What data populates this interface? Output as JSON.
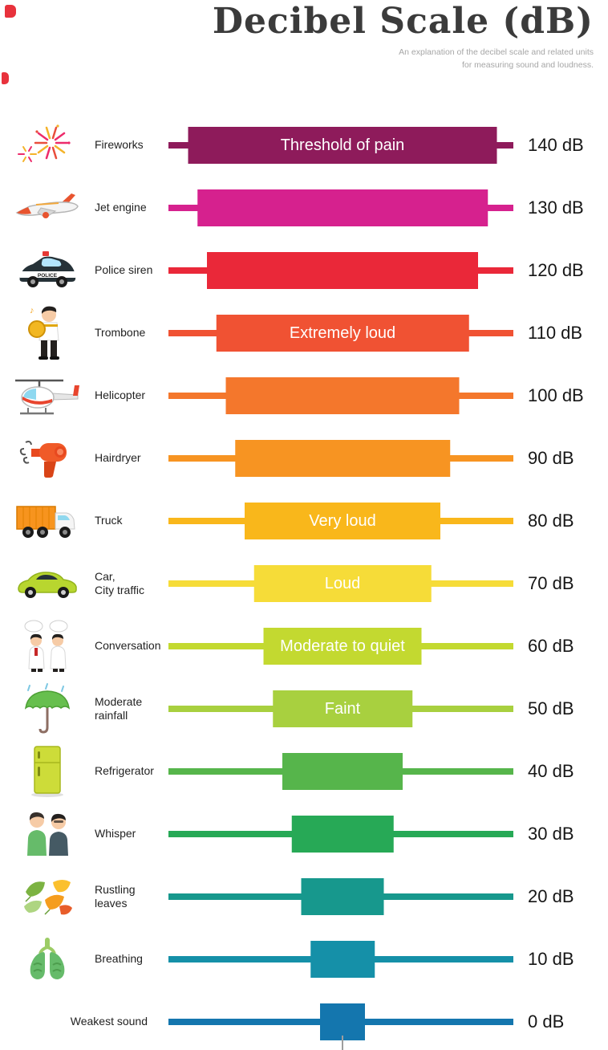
{
  "header": {
    "title": "Decibel Scale (dB)",
    "subtitle_line1": "An explanation of the decibel scale and related units",
    "subtitle_line2": "for measuring sound and loudness."
  },
  "decorations": {
    "corner_mark_color": "#e8323c",
    "bottom_tick_color": "#9e9e9e"
  },
  "chart_data": {
    "type": "bar",
    "orientation": "horizontal",
    "title": "Decibel Scale (dB)",
    "unit": "dB",
    "axis_range_db": [
      0,
      140
    ],
    "rows": [
      {
        "label": "Fireworks",
        "db": 140,
        "db_label": "140 dB",
        "level_text": "Threshold of pain",
        "color": "#8e1b5b",
        "icon": "fireworks-icon"
      },
      {
        "label": "Jet engine",
        "db": 130,
        "db_label": "130 dB",
        "level_text": "",
        "color": "#d6218e",
        "icon": "jet-engine-icon"
      },
      {
        "label": "Police siren",
        "db": 120,
        "db_label": "120 dB",
        "level_text": "",
        "color": "#ea2839",
        "icon": "police-car-icon"
      },
      {
        "label": "Trombone",
        "db": 110,
        "db_label": "110 dB",
        "level_text": "Extremely loud",
        "color": "#f05233",
        "icon": "trombone-player-icon"
      },
      {
        "label": "Helicopter",
        "db": 100,
        "db_label": "100 dB",
        "level_text": "",
        "color": "#f4772c",
        "icon": "helicopter-icon"
      },
      {
        "label": "Hairdryer",
        "db": 90,
        "db_label": "90 dB",
        "level_text": "",
        "color": "#f79422",
        "icon": "hairdryer-icon"
      },
      {
        "label": "Truck",
        "db": 80,
        "db_label": "80 dB",
        "level_text": "Very loud",
        "color": "#f9b71b",
        "icon": "truck-icon"
      },
      {
        "label": "Car,\nCity traffic",
        "db": 70,
        "db_label": "70 dB",
        "level_text": "Loud",
        "color": "#f6dc38",
        "icon": "car-icon"
      },
      {
        "label": "Conversation",
        "db": 60,
        "db_label": "60 dB",
        "level_text": "Moderate to quiet",
        "color": "#c3d930",
        "icon": "conversation-icon"
      },
      {
        "label": "Moderate\nrainfall",
        "db": 50,
        "db_label": "50 dB",
        "level_text": "Faint",
        "color": "#a8d03f",
        "icon": "umbrella-rain-icon"
      },
      {
        "label": "Refrigerator",
        "db": 40,
        "db_label": "40 dB",
        "level_text": "",
        "color": "#56b54b",
        "icon": "refrigerator-icon"
      },
      {
        "label": "Whisper",
        "db": 30,
        "db_label": "30 dB",
        "level_text": "",
        "color": "#27a956",
        "icon": "whisper-icon"
      },
      {
        "label": "Rustling\nleaves",
        "db": 20,
        "db_label": "20 dB",
        "level_text": "",
        "color": "#17988d",
        "icon": "leaves-icon"
      },
      {
        "label": "Breathing",
        "db": 10,
        "db_label": "10 dB",
        "level_text": "",
        "color": "#1590a8",
        "icon": "lungs-icon"
      },
      {
        "label": "Weakest sound",
        "db": 0,
        "db_label": "0 dB",
        "level_text": "",
        "color": "#1476ae",
        "icon": null
      }
    ]
  }
}
